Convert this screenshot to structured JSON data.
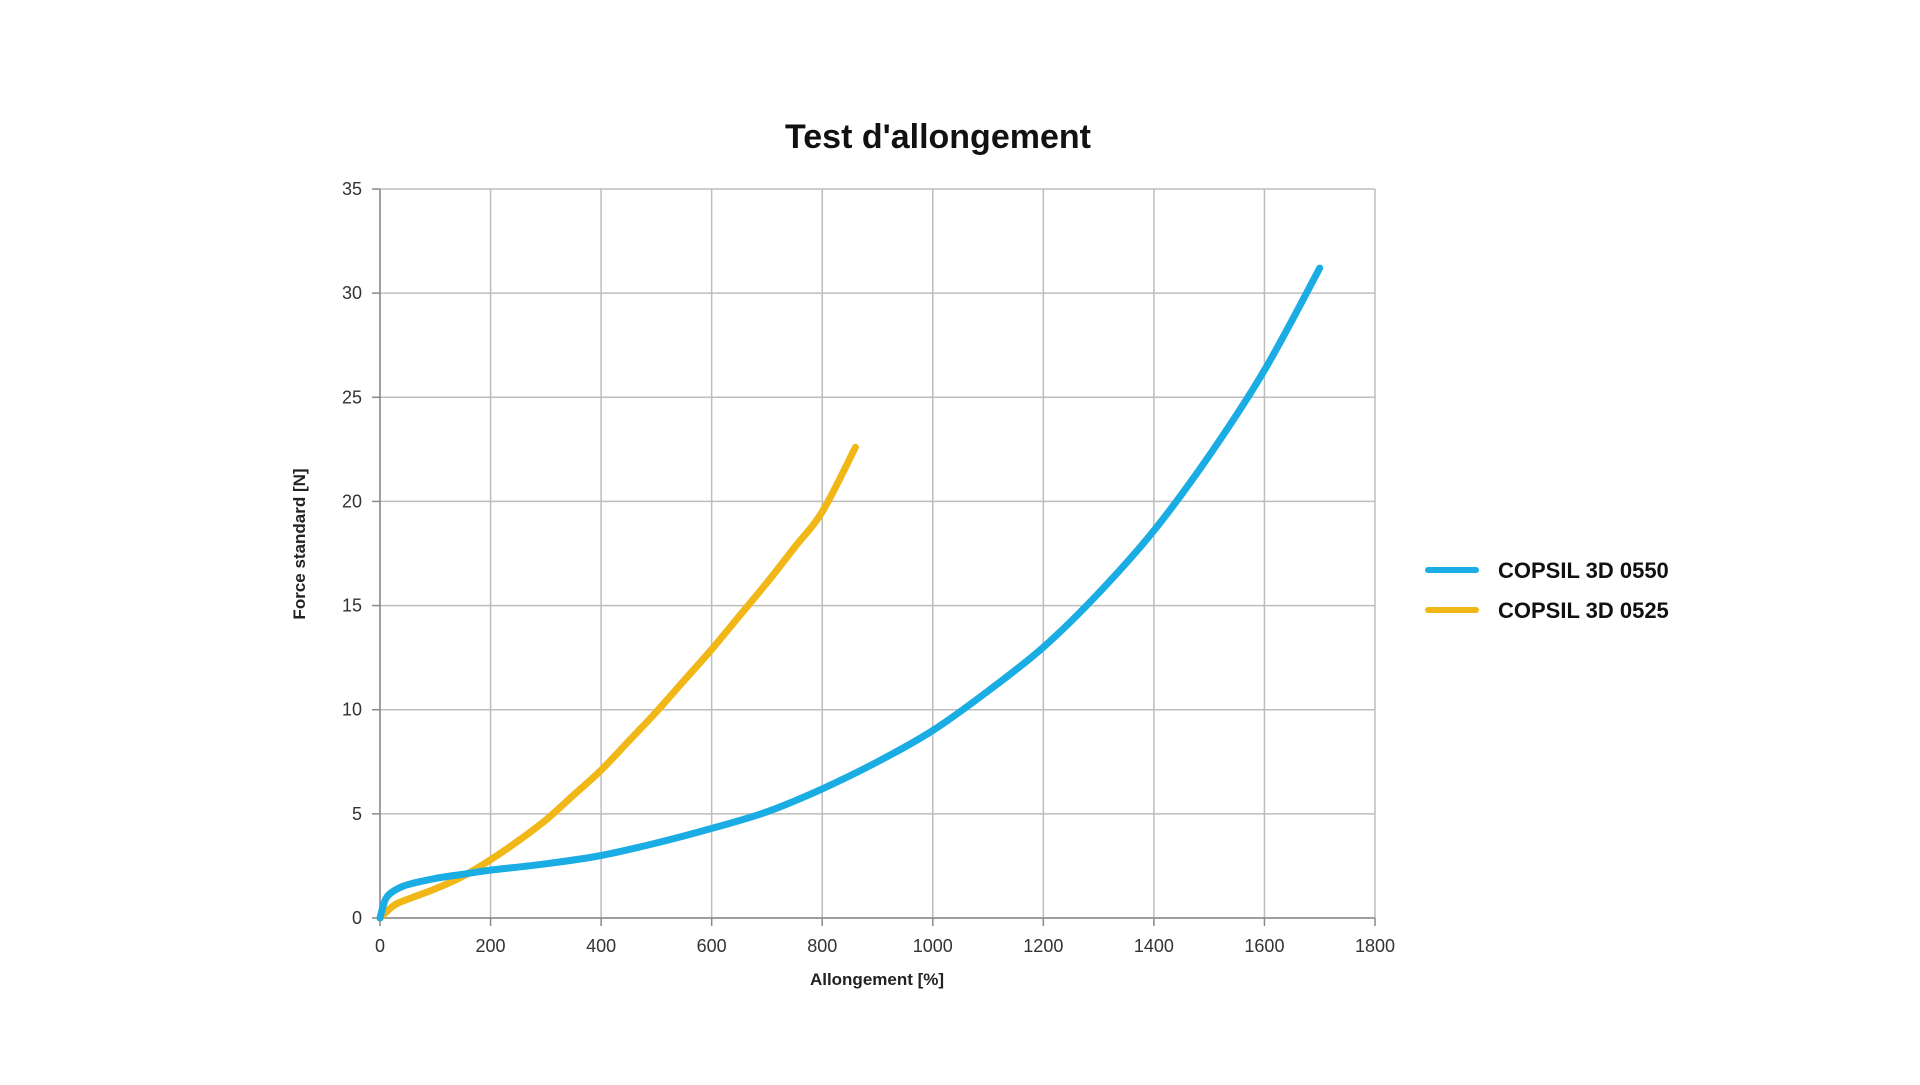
{
  "chart_data": {
    "type": "line",
    "title": "Test d'allongement",
    "xlabel": "Allongement [%]",
    "ylabel": "Force standard [N]",
    "xlim": [
      0,
      1800
    ],
    "ylim": [
      0,
      35
    ],
    "xticks": [
      0,
      200,
      400,
      600,
      800,
      1000,
      1200,
      1400,
      1600,
      1800
    ],
    "yticks": [
      0,
      5,
      10,
      15,
      20,
      25,
      30,
      35
    ],
    "grid": true,
    "legend_position": "right",
    "series": [
      {
        "name": "COPSIL 3D 0550",
        "color": "#1AADE4",
        "x": [
          0,
          10,
          25,
          50,
          100,
          150,
          200,
          300,
          400,
          500,
          600,
          700,
          800,
          900,
          1000,
          1100,
          1200,
          1300,
          1400,
          1500,
          1600,
          1700
        ],
        "y": [
          0,
          0.9,
          1.3,
          1.6,
          1.9,
          2.1,
          2.3,
          2.6,
          3.0,
          3.6,
          4.3,
          5.1,
          6.2,
          7.5,
          9.0,
          10.9,
          13.0,
          15.6,
          18.6,
          22.2,
          26.3,
          31.2
        ]
      },
      {
        "name": "COPSIL 3D 0525",
        "color": "#F0B716",
        "x": [
          0,
          25,
          50,
          100,
          150,
          200,
          250,
          300,
          350,
          400,
          450,
          500,
          550,
          600,
          650,
          700,
          750,
          800,
          860
        ],
        "y": [
          0,
          0.6,
          0.9,
          1.4,
          2.0,
          2.8,
          3.7,
          4.7,
          5.9,
          7.1,
          8.5,
          9.9,
          11.4,
          12.9,
          14.5,
          16.1,
          17.8,
          19.5,
          22.6
        ]
      }
    ]
  }
}
